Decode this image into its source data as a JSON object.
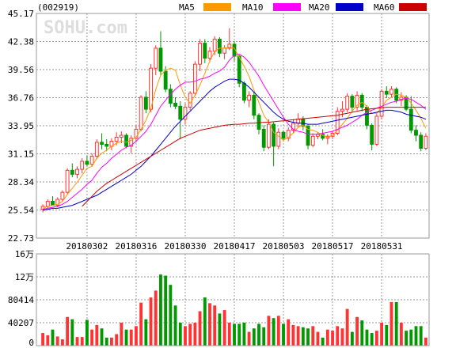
{
  "header": {
    "code": "(002919)",
    "watermark": "SOHU.com",
    "legend": [
      {
        "label": "MA5",
        "color": "#ff9900"
      },
      {
        "label": "MA10",
        "color": "#ff00ff"
      },
      {
        "label": "MA20",
        "color": "#0000cc"
      },
      {
        "label": "MA60",
        "color": "#cc0000"
      }
    ]
  },
  "colors": {
    "up": "#ff3333",
    "down": "#009900",
    "grid": "#999999",
    "border": "#999999",
    "text": "#000000"
  },
  "chart_data": [
    {
      "type": "candlestick",
      "title": "",
      "y_ticks": [
        "45.17",
        "42.38",
        "39.56",
        "36.76",
        "33.95",
        "31.15",
        "28.34",
        "25.54",
        "22.73"
      ],
      "ylim": [
        22.73,
        45.17
      ],
      "x_labels": [
        "20180302",
        "20180316",
        "20180330",
        "20180417",
        "20180503",
        "20180517",
        "20180531"
      ],
      "x_label_index": [
        9,
        19,
        29,
        39,
        49,
        59,
        69
      ],
      "grid": true,
      "candles": [
        [
          25.6,
          26.1,
          25.3,
          25.9
        ],
        [
          25.9,
          26.6,
          25.7,
          26.4
        ],
        [
          26.4,
          26.9,
          26.1,
          26.0
        ],
        [
          26.0,
          26.8,
          25.8,
          26.6
        ],
        [
          26.6,
          27.5,
          26.4,
          27.3
        ],
        [
          27.3,
          29.7,
          27.1,
          29.5
        ],
        [
          29.5,
          30.2,
          28.8,
          29.1
        ],
        [
          29.1,
          29.9,
          28.7,
          29.6
        ],
        [
          29.6,
          30.7,
          29.2,
          30.4
        ],
        [
          30.4,
          31.0,
          29.9,
          30.1
        ],
        [
          30.1,
          31.2,
          29.9,
          30.9
        ],
        [
          30.9,
          32.6,
          30.6,
          32.3
        ],
        [
          32.3,
          33.2,
          31.6,
          32.1
        ],
        [
          32.1,
          32.6,
          31.4,
          31.9
        ],
        [
          31.9,
          32.7,
          31.5,
          32.4
        ],
        [
          32.4,
          33.3,
          32.0,
          32.8
        ],
        [
          32.8,
          33.4,
          32.2,
          33.0
        ],
        [
          33.0,
          33.2,
          31.7,
          31.9
        ],
        [
          31.9,
          33.0,
          31.2,
          32.7
        ],
        [
          32.7,
          34.0,
          32.3,
          33.6
        ],
        [
          33.6,
          37.0,
          33.4,
          36.8
        ],
        [
          36.8,
          37.4,
          35.2,
          35.6
        ],
        [
          35.6,
          40.1,
          35.3,
          39.7
        ],
        [
          39.7,
          42.0,
          39.0,
          41.7
        ],
        [
          41.7,
          43.4,
          39.0,
          39.4
        ],
        [
          39.4,
          39.9,
          37.3,
          37.6
        ],
        [
          37.6,
          38.1,
          35.8,
          36.2
        ],
        [
          36.2,
          36.8,
          35.6,
          35.9
        ],
        [
          35.9,
          36.4,
          32.6,
          34.6
        ],
        [
          34.6,
          36.2,
          34.1,
          35.8
        ],
        [
          35.8,
          37.4,
          35.5,
          37.2
        ],
        [
          37.2,
          40.4,
          36.9,
          40.1
        ],
        [
          40.1,
          42.6,
          39.4,
          42.2
        ],
        [
          42.2,
          42.6,
          40.2,
          40.7
        ],
        [
          40.7,
          41.8,
          40.3,
          41.4
        ],
        [
          41.4,
          42.9,
          41.0,
          42.6
        ],
        [
          42.6,
          42.8,
          40.8,
          41.2
        ],
        [
          41.2,
          42.0,
          40.6,
          41.7
        ],
        [
          41.7,
          43.7,
          41.5,
          42.1
        ],
        [
          42.1,
          42.4,
          40.4,
          40.9
        ],
        [
          40.9,
          41.0,
          37.8,
          38.2
        ],
        [
          38.2,
          38.4,
          36.2,
          36.5
        ],
        [
          36.5,
          37.4,
          35.8,
          37.0
        ],
        [
          37.0,
          37.3,
          34.6,
          35.0
        ],
        [
          35.0,
          35.2,
          33.1,
          33.6
        ],
        [
          33.6,
          34.0,
          31.4,
          31.8
        ],
        [
          31.8,
          34.6,
          31.6,
          34.1
        ],
        [
          34.1,
          34.3,
          29.9,
          31.9
        ],
        [
          31.9,
          33.7,
          31.6,
          33.3
        ],
        [
          33.3,
          33.5,
          32.4,
          32.7
        ],
        [
          32.7,
          33.8,
          32.4,
          33.5
        ],
        [
          33.5,
          34.6,
          33.2,
          34.2
        ],
        [
          34.2,
          35.2,
          33.8,
          34.6
        ],
        [
          34.6,
          34.9,
          33.5,
          33.9
        ],
        [
          33.9,
          34.1,
          31.6,
          32.0
        ],
        [
          32.0,
          33.2,
          31.8,
          32.9
        ],
        [
          32.9,
          33.3,
          32.6,
          33.1
        ],
        [
          33.1,
          33.6,
          32.5,
          32.7
        ],
        [
          32.7,
          33.1,
          32.1,
          32.9
        ],
        [
          32.9,
          33.4,
          32.6,
          33.2
        ],
        [
          33.2,
          35.8,
          33.0,
          35.4
        ],
        [
          35.4,
          36.4,
          34.8,
          35.6
        ],
        [
          35.6,
          37.2,
          35.3,
          36.9
        ],
        [
          36.9,
          37.1,
          35.4,
          35.8
        ],
        [
          35.8,
          37.4,
          35.5,
          37.0
        ],
        [
          37.0,
          37.2,
          35.4,
          35.8
        ],
        [
          35.8,
          36.0,
          33.6,
          34.0
        ],
        [
          34.0,
          34.2,
          31.5,
          32.1
        ],
        [
          32.1,
          35.2,
          31.9,
          34.9
        ],
        [
          34.9,
          37.6,
          34.6,
          37.4
        ],
        [
          37.4,
          37.9,
          36.7,
          37.1
        ],
        [
          37.1,
          37.9,
          36.8,
          37.6
        ],
        [
          37.6,
          37.8,
          36.2,
          36.5
        ],
        [
          36.5,
          37.3,
          35.9,
          36.8
        ],
        [
          36.8,
          37.0,
          35.4,
          35.6
        ],
        [
          35.6,
          36.9,
          33.2,
          33.5
        ],
        [
          33.5,
          34.0,
          32.4,
          33.0
        ],
        [
          33.0,
          33.3,
          31.4,
          31.7
        ],
        [
          31.7,
          33.2,
          31.5,
          32.9
        ]
      ],
      "ma_series": [
        {
          "name": "MA5",
          "start": 0,
          "values": [
            25.7,
            25.9,
            26.0,
            26.1,
            26.4,
            27.1,
            27.7,
            28.3,
            29.0,
            29.7,
            29.9,
            30.7,
            31.2,
            31.5,
            31.9,
            32.2,
            32.4,
            32.3,
            32.5,
            32.8,
            33.6,
            34.5,
            35.7,
            37.6,
            39.0,
            39.5,
            39.7,
            39.5,
            38.0,
            36.8,
            36.2,
            37.0,
            38.0,
            39.2,
            40.4,
            41.4,
            41.7,
            41.7,
            41.8,
            41.7,
            40.8,
            39.9,
            38.9,
            37.5,
            36.3,
            35.0,
            34.3,
            33.3,
            32.9,
            32.5,
            32.8,
            33.2,
            33.8,
            34.0,
            33.6,
            33.5,
            33.3,
            33.0,
            32.8,
            33.0,
            33.5,
            34.1,
            34.7,
            35.4,
            36.0,
            36.3,
            35.9,
            35.2,
            35.2,
            35.8,
            36.5,
            36.8,
            37.1,
            37.0,
            36.8,
            36.2,
            35.5,
            34.7,
            33.7
          ]
        },
        {
          "name": "MA10",
          "start": 0,
          "values": [
            25.6,
            25.7,
            25.8,
            25.9,
            26.1,
            26.4,
            26.8,
            27.2,
            27.6,
            28.1,
            28.5,
            29.2,
            29.8,
            30.2,
            30.7,
            31.1,
            31.5,
            31.8,
            32.0,
            32.4,
            32.9,
            33.4,
            34.1,
            35.0,
            35.9,
            36.5,
            37.1,
            37.6,
            38.0,
            38.3,
            38.3,
            38.4,
            38.6,
            38.7,
            38.9,
            39.2,
            39.4,
            39.8,
            40.5,
            41.0,
            41.1,
            40.8,
            40.3,
            39.6,
            38.9,
            38.0,
            37.2,
            36.4,
            35.6,
            34.8,
            34.1,
            33.6,
            33.4,
            33.3,
            33.1,
            33.1,
            33.1,
            33.2,
            33.3,
            33.4,
            33.6,
            33.8,
            34.0,
            34.3,
            34.6,
            35.0,
            35.3,
            35.5,
            35.7,
            35.9,
            36.1,
            36.3,
            36.4,
            36.6,
            36.7,
            36.6,
            36.3,
            36.0,
            35.6
          ]
        },
        {
          "name": "MA20",
          "start": 0,
          "values": [
            25.5,
            25.6,
            25.7,
            25.7,
            25.8,
            25.9,
            26.0,
            26.2,
            26.4,
            26.6,
            26.8,
            27.0,
            27.3,
            27.6,
            27.9,
            28.2,
            28.5,
            28.8,
            29.1,
            29.5,
            29.9,
            30.4,
            30.9,
            31.5,
            32.1,
            32.7,
            33.3,
            33.9,
            34.4,
            34.9,
            35.4,
            35.9,
            36.4,
            36.9,
            37.4,
            37.8,
            38.1,
            38.4,
            38.6,
            38.6,
            38.5,
            38.2,
            37.8,
            37.3,
            36.8,
            36.3,
            35.8,
            35.3,
            34.9,
            34.6,
            34.4,
            34.3,
            34.2,
            34.2,
            34.1,
            34.1,
            34.1,
            34.2,
            34.3,
            34.4,
            34.5,
            34.6,
            34.7,
            34.8,
            34.9,
            35.0,
            35.1,
            35.2,
            35.3,
            35.4,
            35.5,
            35.5,
            35.4,
            35.3,
            35.1,
            35.0,
            34.9,
            34.8,
            34.6
          ]
        },
        {
          "name": "MA60",
          "start": 8,
          "values": [
            25.9,
            26.4,
            26.9,
            27.4,
            27.8,
            28.2,
            28.5,
            28.8,
            29.1,
            29.4,
            29.7,
            30.0,
            30.3,
            30.6,
            30.9,
            31.2,
            31.5,
            31.8,
            32.1,
            32.4,
            32.7,
            32.9,
            33.1,
            33.3,
            33.5,
            33.6,
            33.7,
            33.8,
            33.9,
            34.0,
            34.05,
            34.1,
            34.1,
            34.15,
            34.2,
            34.2,
            34.25,
            34.3,
            34.3,
            34.35,
            34.4,
            34.45,
            34.5,
            34.55,
            34.6,
            34.65,
            34.7,
            34.75,
            34.8,
            34.85,
            34.9,
            34.95,
            35.0,
            35.1,
            35.2,
            35.3,
            35.4,
            35.5,
            35.6,
            35.65,
            35.7,
            35.75,
            35.8,
            35.8,
            35.8,
            35.8,
            35.8,
            35.8,
            35.8,
            35.8,
            35.8
          ]
        }
      ]
    },
    {
      "type": "bar",
      "title": "",
      "y_ticks": [
        "16万",
        "12万",
        "80414",
        "40207",
        "0"
      ],
      "ylim": [
        0,
        160000
      ],
      "volumes": [
        22000,
        18000,
        28000,
        16000,
        11000,
        50000,
        46000,
        15000,
        15000,
        45000,
        28000,
        36000,
        30000,
        14000,
        14000,
        20000,
        40000,
        28000,
        28000,
        34000,
        75000,
        46000,
        84000,
        96000,
        124000,
        122000,
        106000,
        70000,
        40000,
        34000,
        38000,
        40000,
        60000,
        84000,
        74000,
        70000,
        56000,
        62000,
        40000,
        38000,
        38000,
        40000,
        24000,
        30000,
        38000,
        32000,
        52000,
        48000,
        52000,
        38000,
        46000,
        36000,
        34000,
        32000,
        30000,
        34000,
        24000,
        14000,
        28000,
        26000,
        34000,
        30000,
        64000,
        24000,
        50000,
        44000,
        28000,
        22000,
        26000,
        40000,
        36000,
        76000,
        76000,
        40000,
        26000,
        28000,
        34000,
        34000,
        14000
      ]
    }
  ]
}
